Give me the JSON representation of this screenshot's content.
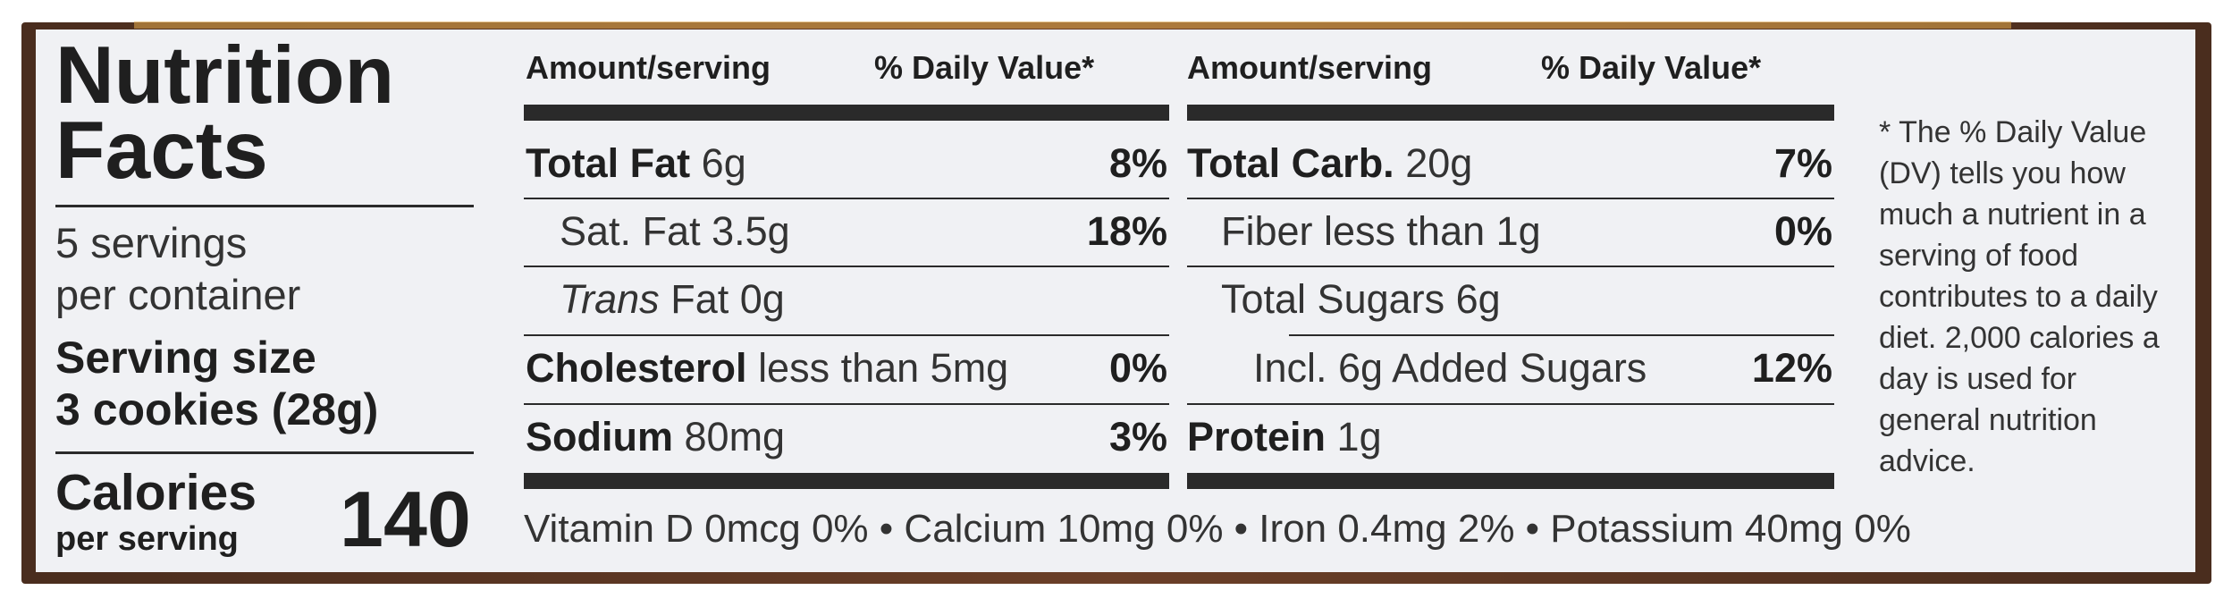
{
  "left": {
    "title_line1": "Nutrition",
    "title_line2": "Facts",
    "servings_line1": "5 servings",
    "servings_line2": "per container",
    "serving_size_label": "Serving size",
    "serving_size_value": "3 cookies (28g)",
    "calories_label": "Calories",
    "calories_sub": "per serving",
    "calories_value": "140"
  },
  "headers": {
    "amount": "Amount/serving",
    "daily_value": "% Daily Value*"
  },
  "col1": [
    {
      "name": "Total Fat",
      "amount": "6g",
      "dv": "8%"
    },
    {
      "name": "Sat. Fat",
      "amount": "3.5g",
      "dv": "18%"
    },
    {
      "name": "Trans",
      "amount": "Fat 0g",
      "dv": ""
    },
    {
      "name": "Cholesterol",
      "amount": "less than 5mg",
      "dv": "0%"
    },
    {
      "name": "Sodium",
      "amount": "80mg",
      "dv": "3%"
    }
  ],
  "col2": [
    {
      "name": "Total Carb.",
      "amount": "20g",
      "dv": "7%"
    },
    {
      "name": "Fiber less than 1g",
      "amount": "",
      "dv": "0%"
    },
    {
      "name": "Total Sugars 6g",
      "amount": "",
      "dv": ""
    },
    {
      "name": "Incl. 6g Added Sugars",
      "amount": "",
      "dv": "12%"
    },
    {
      "name": "Protein",
      "amount": "1g",
      "dv": ""
    }
  ],
  "vitamins": "Vitamin D 0mcg 0% • Calcium 10mg 0% • Iron 0.4mg 2% • Potassium 40mg 0%",
  "footnote": "* The % Daily Value (DV) tells you how much a nutrient in a serving of food contributes to a daily diet. 2,000 calories a day is used for general nutrition advice.",
  "colors": {
    "label_bg": "#f0f1f4",
    "text": "#1f1f1f",
    "frame": "#5a3524"
  }
}
